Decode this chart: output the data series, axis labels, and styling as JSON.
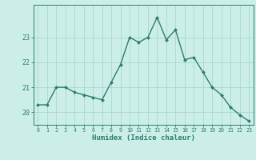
{
  "x": [
    0,
    1,
    2,
    3,
    4,
    5,
    6,
    7,
    8,
    9,
    10,
    11,
    12,
    13,
    14,
    15,
    16,
    17,
    18,
    19,
    20,
    21,
    22,
    23
  ],
  "y": [
    20.3,
    20.3,
    21.0,
    21.0,
    20.8,
    20.7,
    20.6,
    20.5,
    21.2,
    21.9,
    23.0,
    22.8,
    23.0,
    23.8,
    22.9,
    23.3,
    22.1,
    22.2,
    21.6,
    21.0,
    20.7,
    20.2,
    19.9,
    19.65
  ],
  "xlabel": "Humidex (Indice chaleur)",
  "ylim": [
    19.5,
    24.3
  ],
  "xlim": [
    -0.5,
    23.5
  ],
  "yticks": [
    20,
    21,
    22,
    23
  ],
  "xticks": [
    0,
    1,
    2,
    3,
    4,
    5,
    6,
    7,
    8,
    9,
    10,
    11,
    12,
    13,
    14,
    15,
    16,
    17,
    18,
    19,
    20,
    21,
    22,
    23
  ],
  "line_color": "#2e7d6e",
  "marker_color": "#2e7d6e",
  "bg_color": "#cceee8",
  "grid_color": "#aad8d2",
  "axis_color": "#2e7d6e",
  "tick_label_color": "#2e7d6e",
  "xlabel_color": "#2e7d6e",
  "marker": "D",
  "markersize": 2.0,
  "linewidth": 1.0
}
